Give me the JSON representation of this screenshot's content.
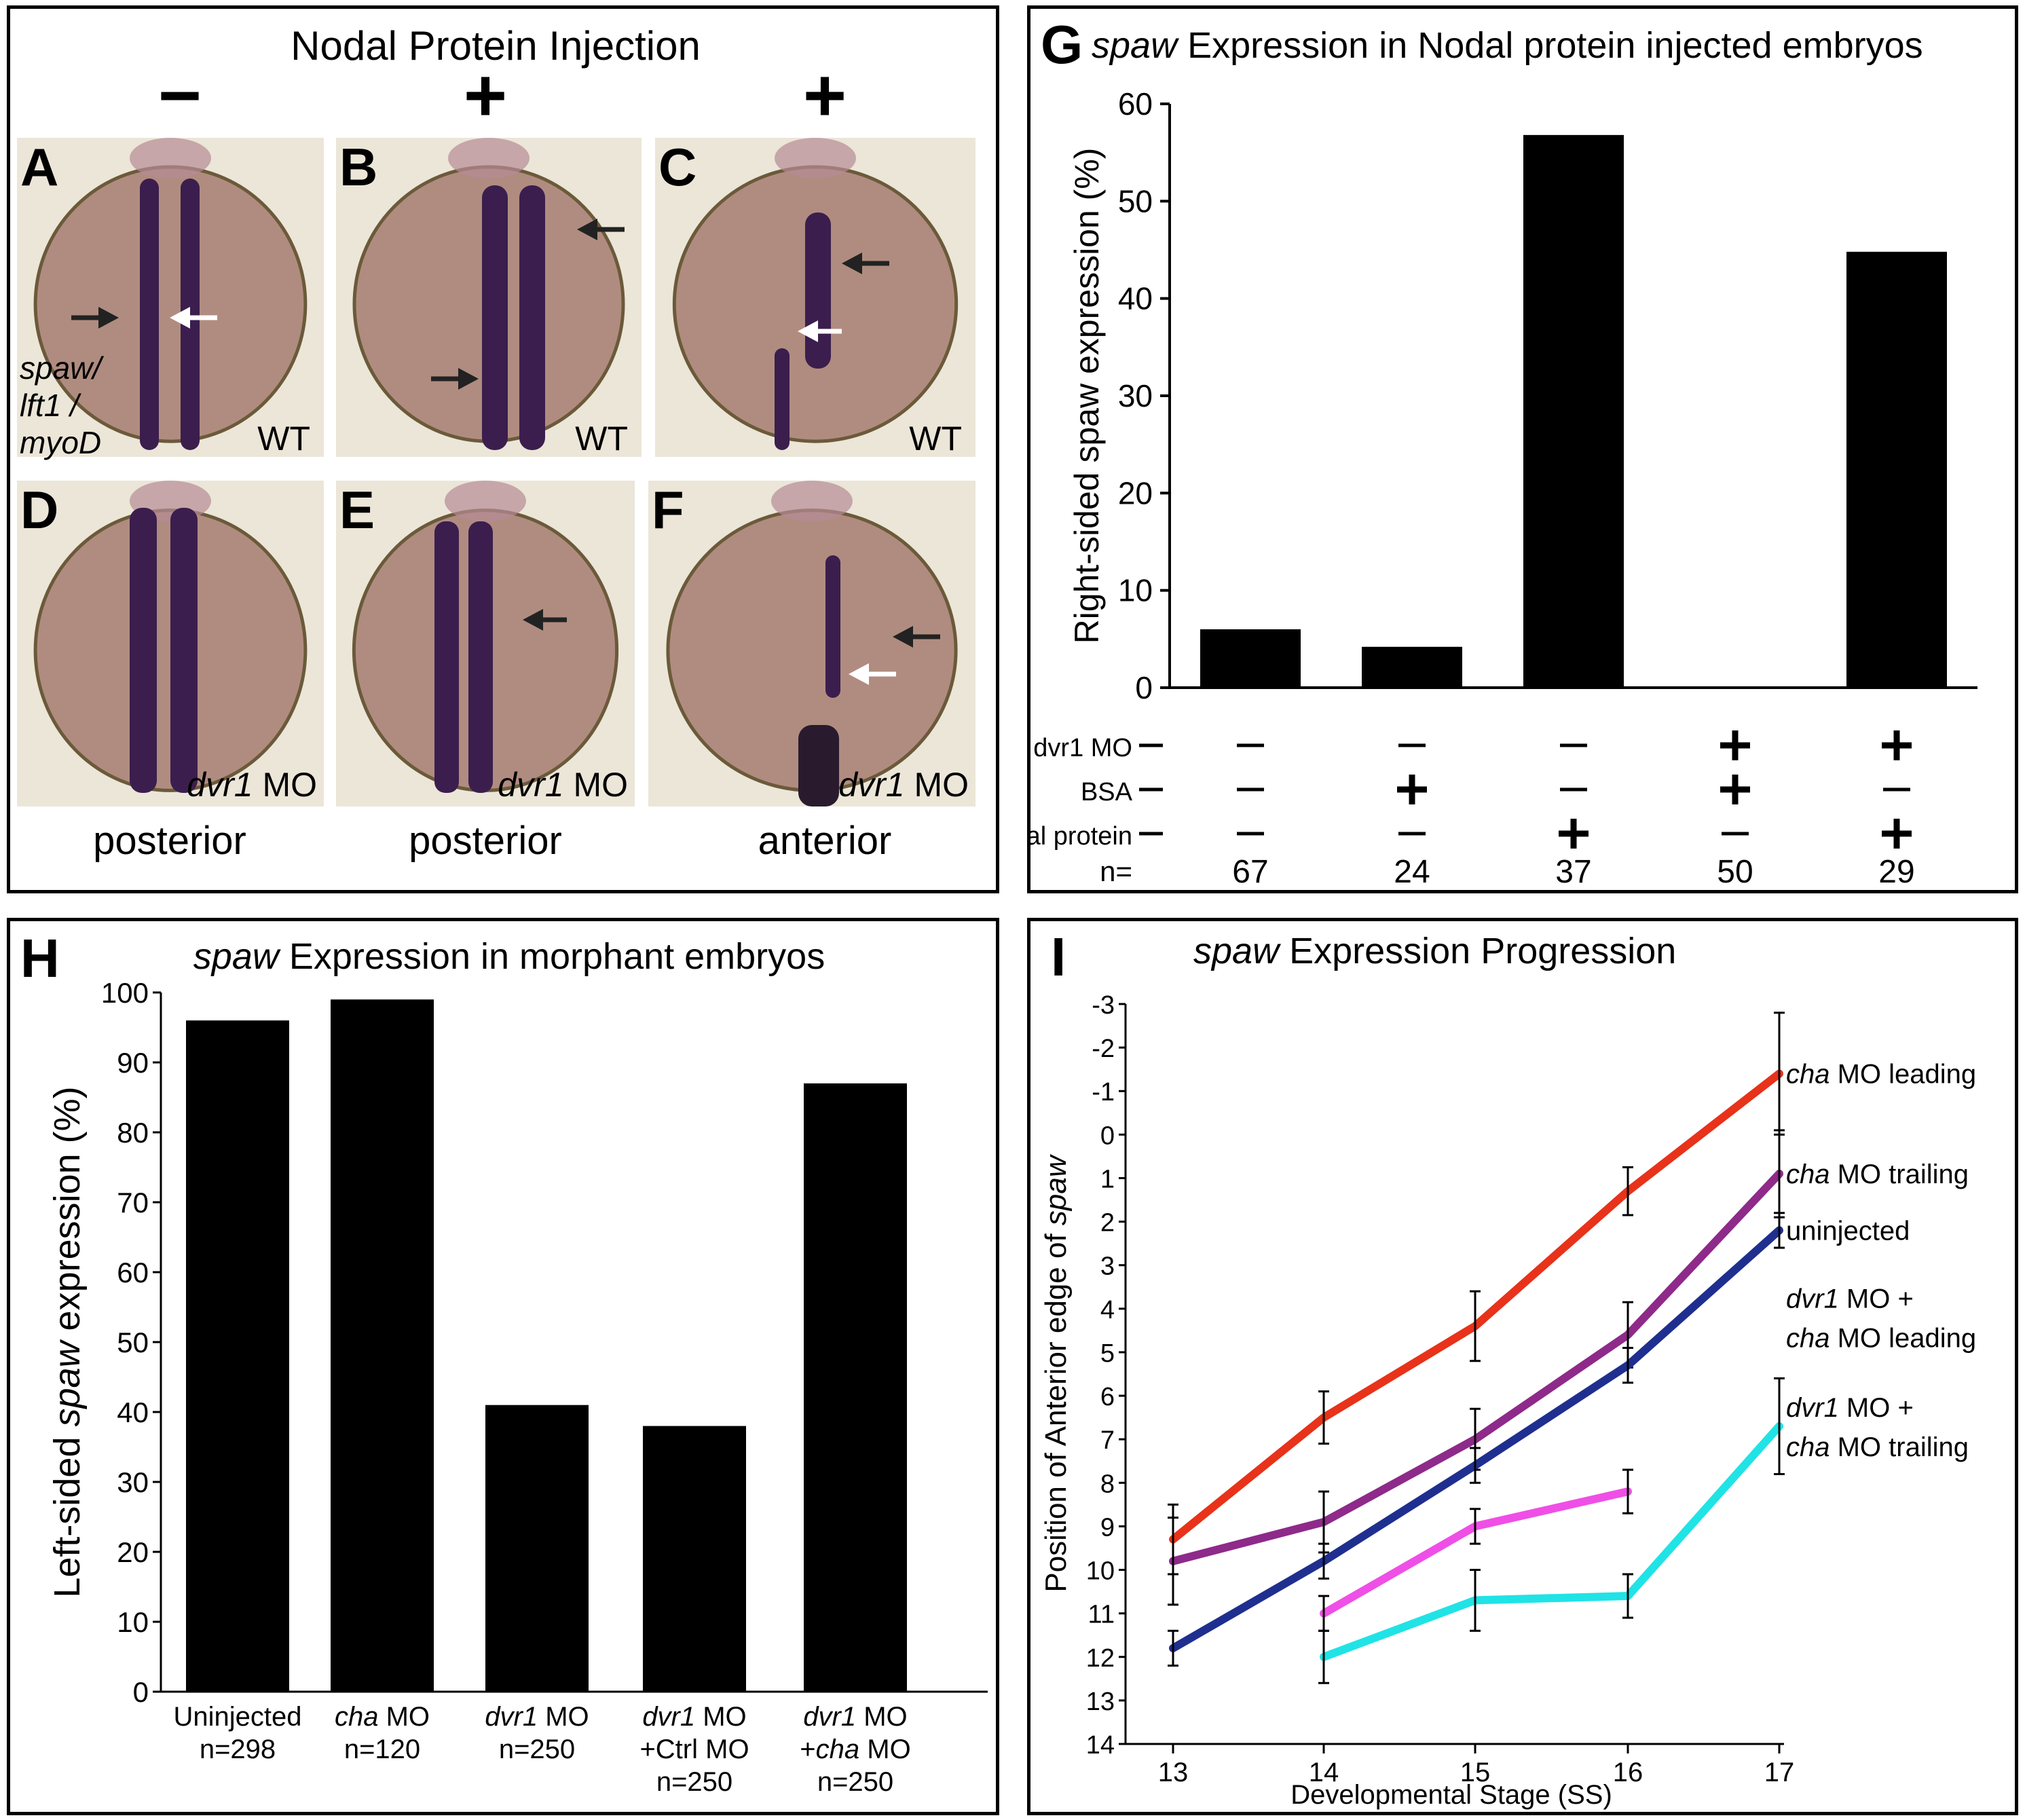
{
  "embryos": {
    "title": "Nodal Protein Injection",
    "col_signs": [
      "−",
      "+",
      "+"
    ],
    "top_row": [
      {
        "letter": "A",
        "genotype": "WT"
      },
      {
        "letter": "B",
        "genotype": "WT"
      },
      {
        "letter": "C",
        "genotype": "WT"
      }
    ],
    "bottom_row": [
      {
        "letter": "D",
        "genotype_italic": "dvr1",
        "genotype_rest": " MO"
      },
      {
        "letter": "E",
        "genotype_italic": "dvr1",
        "genotype_rest": " MO"
      },
      {
        "letter": "F",
        "genotype_italic": "dvr1",
        "genotype_rest": " MO"
      }
    ],
    "probe_label": [
      "spaw/",
      "lft1 /",
      "myoD"
    ],
    "bottom_labels": [
      "posterior",
      "posterior",
      "anterior"
    ],
    "colors": {
      "stain": "#3b1e4e",
      "embryo": "#b08c80",
      "background": "#ebe6d8"
    }
  },
  "chart_G": {
    "letter": "G",
    "title_italic": "spaw",
    "title_rest": " Expression in Nodal protein injected embryos",
    "chart_data": {
      "type": "bar",
      "ylabel": "Right-sided spaw expression (%)",
      "ylim": [
        0,
        60
      ],
      "yticks": [
        "0",
        "10",
        "20",
        "30",
        "40",
        "50",
        "60"
      ],
      "values": [
        6,
        4.2,
        56.8,
        0,
        44.8
      ],
      "table": {
        "row_labels": [
          "dvr1 MO",
          "BSA",
          "Nodal protein"
        ],
        "rows": [
          [
            "−",
            "−",
            "−",
            "+",
            "+"
          ],
          [
            "−",
            "+",
            "−",
            "+",
            "−"
          ],
          [
            "−",
            "−",
            "+",
            "−",
            "+"
          ]
        ],
        "n_label": "n=",
        "n_values": [
          "67",
          "24",
          "37",
          "50",
          "29"
        ]
      }
    }
  },
  "chart_H": {
    "letter": "H",
    "title_italic": "spaw",
    "title_rest": " Expression in morphant embryos",
    "chart_data": {
      "type": "bar",
      "ylabel_before": "Left-sided ",
      "ylabel_italic": "spaw",
      "ylabel_after": " expression (%)",
      "ylim": [
        0,
        100
      ],
      "yticks": [
        "0",
        "10",
        "20",
        "30",
        "40",
        "50",
        "60",
        "70",
        "80",
        "90",
        "100"
      ],
      "values": [
        96,
        99,
        41,
        38,
        87
      ],
      "categories": [
        {
          "lines": [
            {
              "it": "",
              "rest": "Uninjected"
            },
            {
              "it": "",
              "rest": "n=298"
            }
          ]
        },
        {
          "lines": [
            {
              "it": "cha",
              "rest": " MO"
            },
            {
              "it": "",
              "rest": "n=120"
            }
          ]
        },
        {
          "lines": [
            {
              "it": "dvr1",
              "rest": " MO"
            },
            {
              "it": "",
              "rest": "n=250"
            }
          ]
        },
        {
          "lines": [
            {
              "it": "dvr1",
              "rest": " MO"
            },
            {
              "it": "",
              "rest": "+Ctrl MO"
            },
            {
              "it": "",
              "rest": "n=250"
            }
          ]
        },
        {
          "lines": [
            {
              "it": "dvr1",
              "rest": " MO"
            },
            {
              "it": "cha",
              "rest": " MO",
              "prefix": "+"
            },
            {
              "it": "",
              "rest": "n=250"
            }
          ]
        }
      ]
    }
  },
  "chart_I": {
    "letter": "I",
    "title_italic": "spaw",
    "title_rest": " Expression Progression",
    "chart_data": {
      "type": "line",
      "xlabel": "Developmental Stage (SS)",
      "ylabel_before": "Position of Anterior edge of ",
      "ylabel_italic": "spaw",
      "x": [
        13,
        14,
        15,
        16,
        17
      ],
      "xticks": [
        "13",
        "14",
        "15",
        "16",
        "17"
      ],
      "yticks": [
        "-3",
        "-2",
        "-1",
        "0",
        "1",
        "2",
        "3",
        "4",
        "5",
        "6",
        "7",
        "8",
        "9",
        "10",
        "11",
        "12",
        "13",
        "14"
      ],
      "ylim": [
        14,
        -3
      ],
      "series": [
        {
          "label_lines": [
            {
              "it": "cha",
              "rest": " MO leading"
            }
          ],
          "color": "#e8321a",
          "points": [
            [
              13,
              9.3
            ],
            [
              14,
              6.5
            ],
            [
              15,
              4.4
            ],
            [
              16,
              1.3
            ],
            [
              17,
              -1.4
            ]
          ],
          "errors": [
            0.8,
            0.6,
            0.8,
            0.55,
            1.4
          ]
        },
        {
          "label_lines": [
            {
              "it": "cha",
              "rest": " MO trailing"
            }
          ],
          "color": "#8e2a8a",
          "points": [
            [
              13,
              9.8
            ],
            [
              14,
              8.9
            ],
            [
              15,
              7.0
            ],
            [
              16,
              4.6
            ],
            [
              17,
              0.9
            ]
          ],
          "errors": [
            1.0,
            0.7,
            0.7,
            0.75,
            1.0
          ]
        },
        {
          "label_lines": [
            {
              "it": "",
              "rest": "uninjected"
            }
          ],
          "color": "#1f2f8f",
          "points": [
            [
              13,
              11.8
            ],
            [
              14,
              9.8
            ],
            [
              15,
              7.6
            ],
            [
              16,
              5.3
            ],
            [
              17,
              2.2
            ]
          ],
          "errors": [
            0.4,
            0.4,
            0.4,
            0.4,
            0.4
          ]
        },
        {
          "label_lines": [
            {
              "it": "dvr1",
              "rest": " MO +"
            },
            {
              "it": "cha",
              "rest": " MO leading"
            }
          ],
          "color": "#ef4fe6",
          "points": [
            [
              14,
              11.0
            ],
            [
              15,
              9.0
            ],
            [
              16,
              8.2
            ]
          ],
          "errors": [
            0.4,
            0.4,
            0.5
          ]
        },
        {
          "label_lines": [
            {
              "it": "dvr1",
              "rest": " MO +"
            },
            {
              "it": "cha",
              "rest": " MO trailing"
            }
          ],
          "color": "#20e3e6",
          "points": [
            [
              14,
              12.0
            ],
            [
              15,
              10.7
            ],
            [
              16,
              10.6
            ],
            [
              17,
              6.7
            ]
          ],
          "errors": [
            0.6,
            0.7,
            0.5,
            1.1
          ]
        }
      ],
      "label_y": [
        -1.4,
        0.9,
        2.2,
        4.2,
        6.7
      ]
    }
  }
}
